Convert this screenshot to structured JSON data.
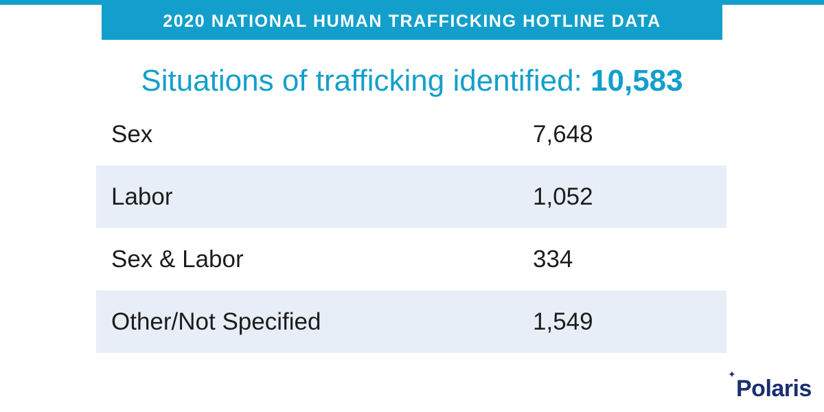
{
  "header": {
    "banner_text": "2020 NATIONAL HUMAN TRAFFICKING HOTLINE DATA"
  },
  "headline": {
    "label": "Situations of trafficking identified:",
    "total": "10,583"
  },
  "table": {
    "rows": [
      {
        "label": "Sex",
        "value": "7,648",
        "shaded": false
      },
      {
        "label": "Labor",
        "value": "1,052",
        "shaded": true
      },
      {
        "label": "Sex & Labor",
        "value": "334",
        "shaded": false
      },
      {
        "label": "Other/Not Specified",
        "value": "1,549",
        "shaded": true
      }
    ]
  },
  "logo": {
    "text": "Polaris",
    "icon": "star-icon"
  },
  "colors": {
    "accent": "#139fcb",
    "row_shade": "#e8eef7",
    "text": "#1c1c1c",
    "logo": "#1b2f6e"
  }
}
